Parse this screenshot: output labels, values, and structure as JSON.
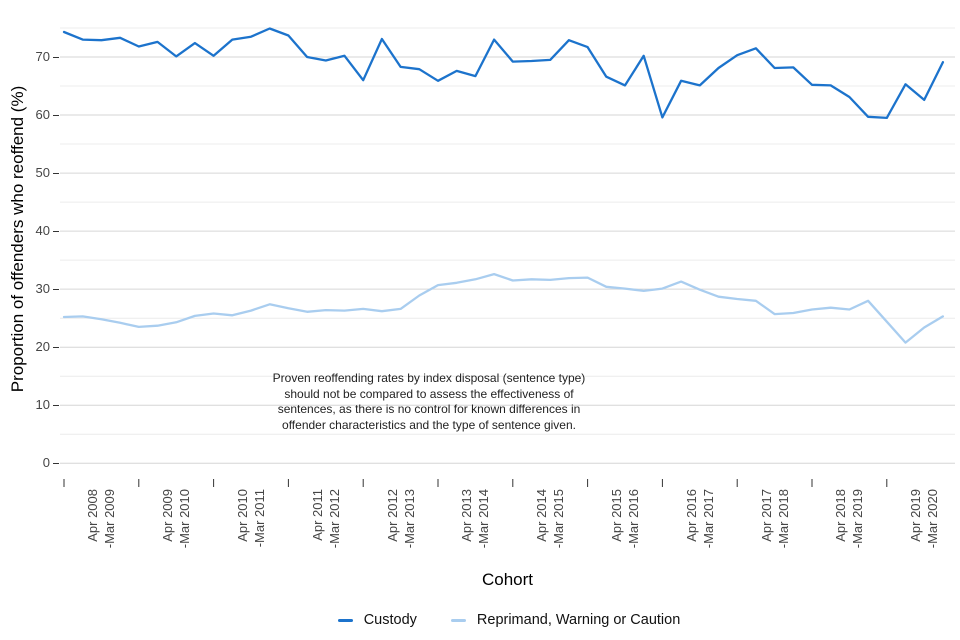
{
  "chart": {
    "y_axis": {
      "title": "Proportion of offenders who reoffend (%)",
      "tick_values": [
        0,
        10,
        20,
        30,
        40,
        50,
        60,
        70
      ]
    },
    "x_axis": {
      "title": "Cohort"
    },
    "annotation": {
      "text": "Proven reoffending rates by index disposal (sentence type)\nshould not be compared to assess the effectiveness of\nsentences, as there is no control for known differences in\noffender characteristics and the type of sentence given."
    },
    "style": {
      "grid_major_color": "#d6d6d6",
      "grid_minor_color": "#ececec",
      "tick_mark_color": "#333333",
      "tick_label_color": "#454545",
      "background": "#ffffff"
    }
  },
  "chart_data": {
    "type": "line",
    "title": "",
    "xlabel": "Cohort",
    "ylabel": "Proportion of offenders who reoffend (%)",
    "ylim": [
      0,
      78
    ],
    "grid": "horizontal major (10s) and minor (5s)",
    "legend_position": "bottom",
    "x_description": "48 quarterly offender cohorts from Apr 2008 to Mar 2020; axis ticks mark the start of each 12-month period",
    "x_tick_labels": [
      "Apr 2008\n-Mar 2009",
      "Apr 2009\n-Mar 2010",
      "Apr 2010\n-Mar 2011",
      "Apr 2011\n-Mar 2012",
      "Apr 2012\n-Mar 2013",
      "Apr 2013\n-Mar 2014",
      "Apr 2014\n-Mar 2015",
      "Apr 2015\n-Mar 2016",
      "Apr 2016\n-Mar 2017",
      "Apr 2017\n-Mar 2018",
      "Apr 2018\n-Mar 2019",
      "Apr 2019\n-Mar 2020"
    ],
    "points_per_tick": 4,
    "series": [
      {
        "name": "Custody",
        "color": "#1c73cc",
        "values": [
          74.3,
          73.0,
          72.9,
          73.3,
          71.8,
          72.6,
          70.1,
          72.4,
          70.2,
          73.0,
          73.5,
          74.9,
          73.7,
          70.0,
          69.4,
          70.2,
          66.0,
          73.1,
          68.3,
          67.9,
          65.9,
          67.6,
          66.7,
          73.0,
          69.2,
          69.3,
          69.5,
          72.9,
          71.7,
          66.6,
          65.1,
          70.2,
          59.6,
          65.9,
          65.1,
          68.1,
          70.3,
          71.5,
          68.1,
          68.2,
          65.2,
          65.1,
          63.1,
          59.7,
          59.5,
          65.3,
          62.6,
          69.1
        ]
      },
      {
        "name": "Reprimand, Warning or Caution",
        "color": "#a9cdef",
        "values": [
          25.2,
          25.3,
          24.8,
          24.2,
          23.5,
          23.7,
          24.3,
          25.4,
          25.8,
          25.5,
          26.3,
          27.4,
          26.7,
          26.1,
          26.4,
          26.3,
          26.6,
          26.2,
          26.6,
          28.9,
          30.7,
          31.1,
          31.7,
          32.6,
          31.5,
          31.7,
          31.6,
          31.9,
          32.0,
          30.4,
          30.1,
          29.7,
          30.1,
          31.3,
          29.9,
          28.7,
          28.3,
          28.0,
          25.7,
          25.9,
          26.5,
          26.8,
          26.5,
          28.0,
          24.4,
          20.8,
          23.4,
          25.3
        ]
      }
    ]
  }
}
